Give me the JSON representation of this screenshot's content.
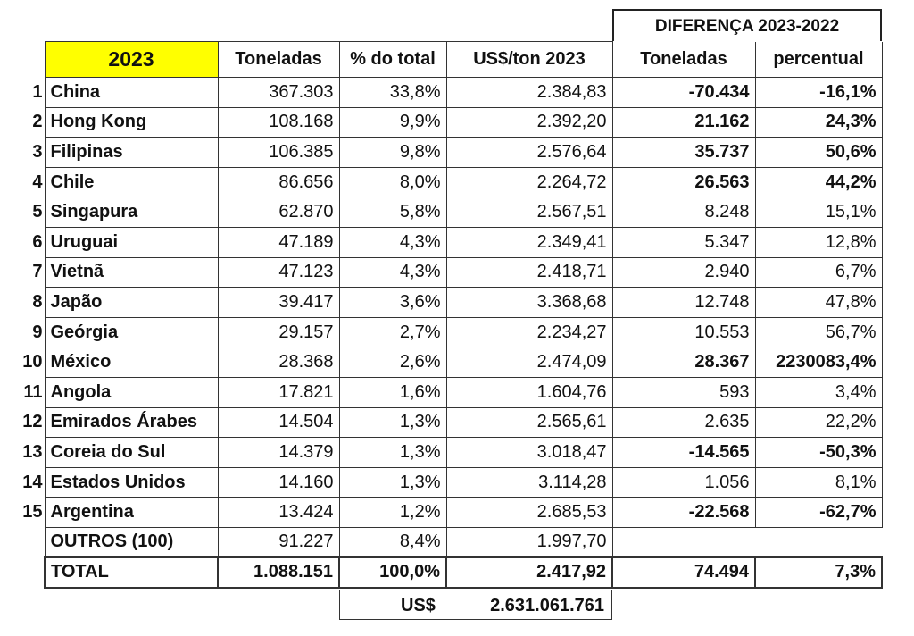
{
  "diff_header": "DIFERENÇA 2023-2022",
  "headers": [
    "2023",
    "Toneladas",
    "% do total",
    "US$/ton 2023",
    "Toneladas",
    "percentual"
  ],
  "highlight_color": "#ffff00",
  "rows": [
    {
      "rank": "1",
      "country": "China",
      "tons": "367.303",
      "share": "33,8%",
      "price": "2.384,83",
      "diff_tons": "-70.434",
      "diff_pct": "-16,1%",
      "bold": true
    },
    {
      "rank": "2",
      "country": "Hong Kong",
      "tons": "108.168",
      "share": "9,9%",
      "price": "2.392,20",
      "diff_tons": "21.162",
      "diff_pct": "24,3%",
      "bold": true
    },
    {
      "rank": "3",
      "country": "Filipinas",
      "tons": "106.385",
      "share": "9,8%",
      "price": "2.576,64",
      "diff_tons": "35.737",
      "diff_pct": "50,6%",
      "bold": true
    },
    {
      "rank": "4",
      "country": "Chile",
      "tons": "86.656",
      "share": "8,0%",
      "price": "2.264,72",
      "diff_tons": "26.563",
      "diff_pct": "44,2%",
      "bold": true
    },
    {
      "rank": "5",
      "country": "Singapura",
      "tons": "62.870",
      "share": "5,8%",
      "price": "2.567,51",
      "diff_tons": "8.248",
      "diff_pct": "15,1%",
      "bold": false
    },
    {
      "rank": "6",
      "country": "Uruguai",
      "tons": "47.189",
      "share": "4,3%",
      "price": "2.349,41",
      "diff_tons": "5.347",
      "diff_pct": "12,8%",
      "bold": false
    },
    {
      "rank": "7",
      "country": "Vietnã",
      "tons": "47.123",
      "share": "4,3%",
      "price": "2.418,71",
      "diff_tons": "2.940",
      "diff_pct": "6,7%",
      "bold": false
    },
    {
      "rank": "8",
      "country": "Japão",
      "tons": "39.417",
      "share": "3,6%",
      "price": "3.368,68",
      "diff_tons": "12.748",
      "diff_pct": "47,8%",
      "bold": false
    },
    {
      "rank": "9",
      "country": "Geórgia",
      "tons": "29.157",
      "share": "2,7%",
      "price": "2.234,27",
      "diff_tons": "10.553",
      "diff_pct": "56,7%",
      "bold": false
    },
    {
      "rank": "10",
      "country": "México",
      "tons": "28.368",
      "share": "2,6%",
      "price": "2.474,09",
      "diff_tons": "28.367",
      "diff_pct": "2230083,4%",
      "bold": true
    },
    {
      "rank": "11",
      "country": "Angola",
      "tons": "17.821",
      "share": "1,6%",
      "price": "1.604,76",
      "diff_tons": "593",
      "diff_pct": "3,4%",
      "bold": false
    },
    {
      "rank": "12",
      "country": "Emirados Árabes",
      "tons": "14.504",
      "share": "1,3%",
      "price": "2.565,61",
      "diff_tons": "2.635",
      "diff_pct": "22,2%",
      "bold": false
    },
    {
      "rank": "13",
      "country": "Coreia do Sul",
      "tons": "14.379",
      "share": "1,3%",
      "price": "3.018,47",
      "diff_tons": "-14.565",
      "diff_pct": "-50,3%",
      "bold": true
    },
    {
      "rank": "14",
      "country": "Estados Unidos",
      "tons": "14.160",
      "share": "1,3%",
      "price": "3.114,28",
      "diff_tons": "1.056",
      "diff_pct": "8,1%",
      "bold": false
    },
    {
      "rank": "15",
      "country": "Argentina",
      "tons": "13.424",
      "share": "1,2%",
      "price": "2.685,53",
      "diff_tons": "-22.568",
      "diff_pct": "-62,7%",
      "bold": true
    }
  ],
  "others": {
    "label": "OUTROS (100)",
    "tons": "91.227",
    "share": "8,4%",
    "price": "1.997,70"
  },
  "total": {
    "label": "TOTAL",
    "tons": "1.088.151",
    "share": "100,0%",
    "price": "2.417,92",
    "diff_tons": "74.494",
    "diff_pct": "7,3%"
  },
  "usd_total": {
    "label": "US$",
    "value": "2.631.061.761"
  }
}
